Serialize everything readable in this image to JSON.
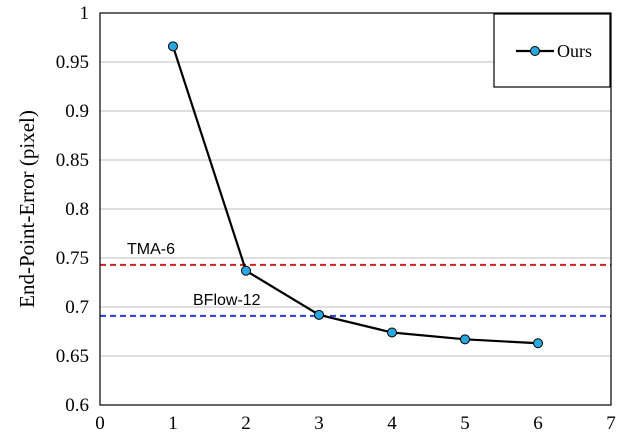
{
  "chart_data": {
    "type": "line",
    "title": "",
    "xlabel": "",
    "ylabel": "End-Point-Error (pixel)",
    "xlim": [
      0,
      7
    ],
    "ylim": [
      0.6,
      1.0
    ],
    "x_ticks": [
      "0",
      "1",
      "2",
      "3",
      "4",
      "5",
      "6",
      "7"
    ],
    "y_ticks": [
      "0.6",
      "0.65",
      "0.7",
      "0.75",
      "0.8",
      "0.85",
      "0.9",
      "0.95",
      "1"
    ],
    "grid": "horizontal",
    "legend_position": "top-right",
    "series": [
      {
        "name": "Ours",
        "color": "#000000",
        "marker_color": "#29a8e0",
        "x": [
          1,
          2,
          3,
          4,
          5,
          6
        ],
        "y": [
          0.966,
          0.737,
          0.692,
          0.674,
          0.667,
          0.663
        ]
      }
    ],
    "reference_lines": [
      {
        "label": "TMA-6",
        "y": 0.743,
        "color": "#cc2222"
      },
      {
        "label": "BFlow-12",
        "y": 0.691,
        "color": "#2b3bd6"
      }
    ]
  }
}
